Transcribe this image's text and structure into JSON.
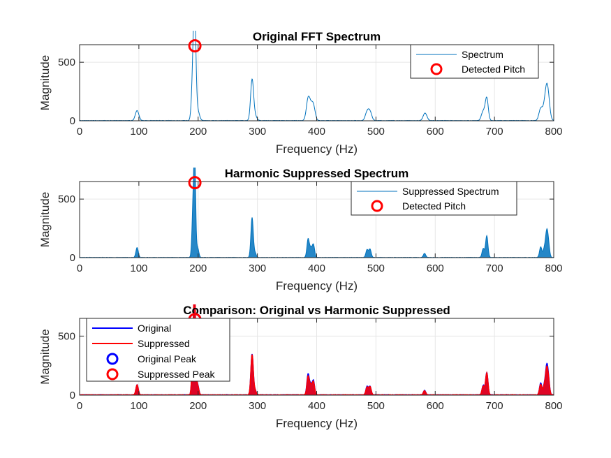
{
  "chart_data": [
    {
      "type": "line",
      "title": "Original FFT Spectrum",
      "xlabel": "Frequency (Hz)",
      "ylabel": "Magnitude",
      "xlim": [
        0,
        800
      ],
      "ylim": [
        0,
        650
      ],
      "xticks": [
        0,
        100,
        200,
        300,
        400,
        500,
        600,
        700,
        800
      ],
      "yticks": [
        0,
        500
      ],
      "grid": true,
      "legend_position": "top-right",
      "series": [
        {
          "name": "Spectrum",
          "color": "#0072bd",
          "peaks": [
            [
              97,
              85,
              3
            ],
            [
              192,
              520,
              2.5
            ],
            [
              194.5,
              630,
              2
            ],
            [
              199,
              90,
              3
            ],
            [
              291,
              345,
              2.5
            ],
            [
              296,
              40,
              3
            ],
            [
              385.5,
              175,
              3
            ],
            [
              390,
              80,
              3
            ],
            [
              394.5,
              120,
              3
            ],
            [
              485,
              70,
              3
            ],
            [
              490,
              72,
              3
            ],
            [
              582,
              38,
              3
            ],
            [
              584,
              30,
              3
            ],
            [
              681,
              80,
              3
            ],
            [
              687,
              190,
              2.5
            ],
            [
              778,
              100,
              3
            ],
            [
              784,
              75,
              3
            ],
            [
              788,
              212,
              3
            ],
            [
              791,
              120,
              3
            ]
          ]
        }
      ],
      "markers": [
        {
          "name": "Detected Pitch",
          "x": 194.5,
          "y": 640,
          "color": "#ff0000"
        }
      ]
    },
    {
      "type": "line",
      "title": "Harmonic Suppressed Spectrum",
      "xlabel": "Frequency (Hz)",
      "ylabel": "Magnitude",
      "xlim": [
        0,
        800
      ],
      "ylim": [
        0,
        650
      ],
      "xticks": [
        0,
        100,
        200,
        300,
        400,
        500,
        600,
        700,
        800
      ],
      "yticks": [
        0,
        500
      ],
      "grid": true,
      "legend_position": "top-right",
      "series": [
        {
          "name": "Suppressed Spectrum",
          "color": "#0072bd",
          "peaks": [
            [
              97,
              85,
              2
            ],
            [
              192,
              520,
              2
            ],
            [
              194.5,
              630,
              1.5
            ],
            [
              199,
              85,
              2
            ],
            [
              291,
              340,
              2
            ],
            [
              296,
              38,
              2
            ],
            [
              385.5,
              155,
              2
            ],
            [
              390,
              75,
              2
            ],
            [
              394.5,
              110,
              2
            ],
            [
              485,
              65,
              2
            ],
            [
              490,
              70,
              2
            ],
            [
              582,
              35,
              2
            ],
            [
              681,
              75,
              2
            ],
            [
              687,
              185,
              2
            ],
            [
              778,
              90,
              2
            ],
            [
              784,
              70,
              2
            ],
            [
              788,
              195,
              2
            ],
            [
              791,
              110,
              2
            ]
          ]
        }
      ],
      "markers": [
        {
          "name": "Detected Pitch",
          "x": 194.5,
          "y": 640,
          "color": "#ff0000"
        }
      ]
    },
    {
      "type": "line",
      "title": "Comparison: Original vs Harmonic Suppressed",
      "xlabel": "Frequency (Hz)",
      "ylabel": "Magnitude",
      "xlim": [
        0,
        800
      ],
      "ylim": [
        0,
        650
      ],
      "xticks": [
        0,
        100,
        200,
        300,
        400,
        500,
        600,
        700,
        800
      ],
      "yticks": [
        0,
        500
      ],
      "grid": true,
      "legend_position": "top-left",
      "series": [
        {
          "name": "Original",
          "color": "#0000ff",
          "peaks": [
            [
              97,
              85,
              2
            ],
            [
              192,
              520,
              2
            ],
            [
              194.5,
              630,
              1.5
            ],
            [
              199,
              90,
              2
            ],
            [
              291,
              345,
              2
            ],
            [
              296,
              40,
              2
            ],
            [
              385.5,
              175,
              2
            ],
            [
              390,
              80,
              2
            ],
            [
              394.5,
              120,
              2
            ],
            [
              485,
              70,
              2
            ],
            [
              490,
              72,
              2
            ],
            [
              582,
              38,
              2
            ],
            [
              681,
              80,
              2
            ],
            [
              687,
              190,
              2
            ],
            [
              778,
              100,
              2
            ],
            [
              784,
              75,
              2
            ],
            [
              788,
              212,
              2
            ],
            [
              791,
              120,
              2
            ]
          ]
        },
        {
          "name": "Suppressed",
          "color": "#ff0000",
          "peaks": [
            [
              97,
              85,
              2
            ],
            [
              192,
              520,
              2
            ],
            [
              194.5,
              630,
              1.5
            ],
            [
              199,
              85,
              2
            ],
            [
              291,
              340,
              2
            ],
            [
              296,
              38,
              2
            ],
            [
              385.5,
              155,
              2
            ],
            [
              390,
              75,
              2
            ],
            [
              394.5,
              110,
              2
            ],
            [
              485,
              65,
              2
            ],
            [
              490,
              70,
              2
            ],
            [
              582,
              35,
              2
            ],
            [
              681,
              75,
              2
            ],
            [
              687,
              185,
              2
            ],
            [
              778,
              90,
              2
            ],
            [
              784,
              70,
              2
            ],
            [
              788,
              195,
              2
            ],
            [
              791,
              110,
              2
            ]
          ]
        }
      ],
      "markers": [
        {
          "name": "Original Peak",
          "x": 194.5,
          "y": 640,
          "color": "#0000ff"
        },
        {
          "name": "Suppressed Peak",
          "x": 194.5,
          "y": 640,
          "color": "#ff0000"
        }
      ]
    }
  ]
}
